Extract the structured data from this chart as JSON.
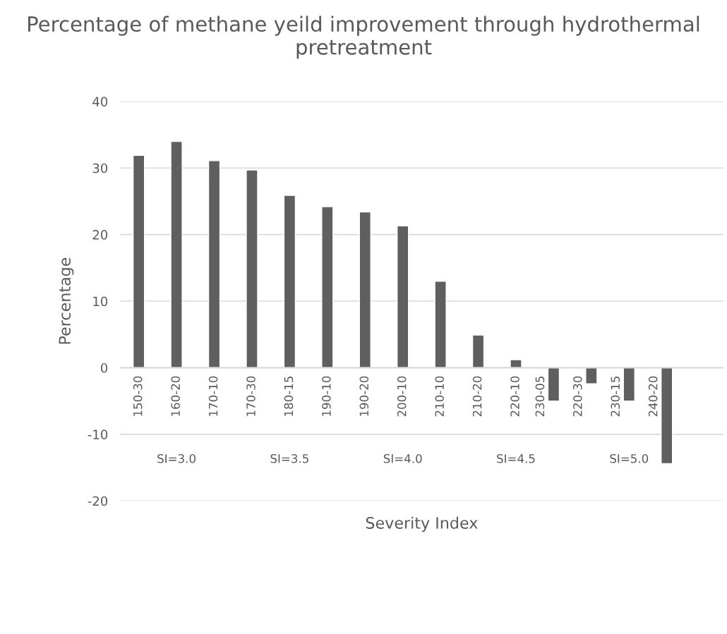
{
  "chart_data": {
    "type": "bar",
    "title": "Percentage of methane yeild improvement through hydrothermal pretreatment",
    "xlabel": "Severity Index",
    "ylabel": "Percentage",
    "categories": [
      "150-30",
      "160-20",
      "170-10",
      "170-30",
      "180-15",
      "190-10",
      "190-20",
      "200-10",
      "210-10",
      "210-20",
      "220-10",
      "230-05",
      "220-30",
      "230-15",
      "240-20",
      null
    ],
    "values": [
      31.9,
      34.0,
      31.1,
      29.7,
      25.9,
      24.2,
      23.4,
      21.3,
      13.0,
      4.9,
      1.2,
      -5.0,
      -2.4,
      -5.0,
      -14.4,
      null
    ],
    "color": "#5f5f5f",
    "annotations": [
      "SI=3.0",
      "SI=3.5",
      "SI=4.0",
      "SI=4.5",
      "SI=5.0"
    ],
    "ylim": [
      -20,
      40
    ],
    "yticks": [
      -20,
      -10,
      0,
      10,
      20,
      30,
      40
    ],
    "grid": "y",
    "legend": false
  }
}
